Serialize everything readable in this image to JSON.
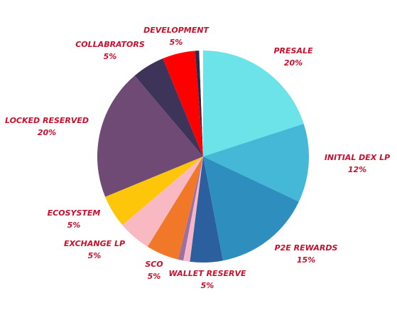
{
  "chart_data": {
    "type": "pie",
    "categories": [
      "PRESALE",
      "INITIAL DEX LP",
      "P2E REWARDS",
      "WALLET RESERVE",
      null,
      null,
      "SCO",
      "EXCHANGE LP",
      "ECOSYSTEM",
      "LOCKED RESERVED",
      "COLLABRATORS",
      "DEVELOPMENT",
      null,
      null
    ],
    "values": [
      20,
      12,
      15,
      5,
      1,
      0.8,
      5,
      5,
      5,
      20,
      5,
      5,
      0.6,
      0.6
    ],
    "value_labels": [
      "20%",
      "12%",
      "15%",
      "5%",
      null,
      null,
      "5%",
      "5%",
      "5%",
      "20%",
      "5%",
      "5%",
      null,
      null
    ],
    "colors": [
      "#6ce3e8",
      "#44b8d6",
      "#2e8fbf",
      "#2c5f9e",
      "#f7b6c8",
      "#9b6fa0",
      "#f07828",
      "#f9b9c3",
      "#fdc60a",
      "#6e4a74",
      "#3e3358",
      "#ff0000",
      "#2a2a4a",
      "#ffffff"
    ]
  }
}
